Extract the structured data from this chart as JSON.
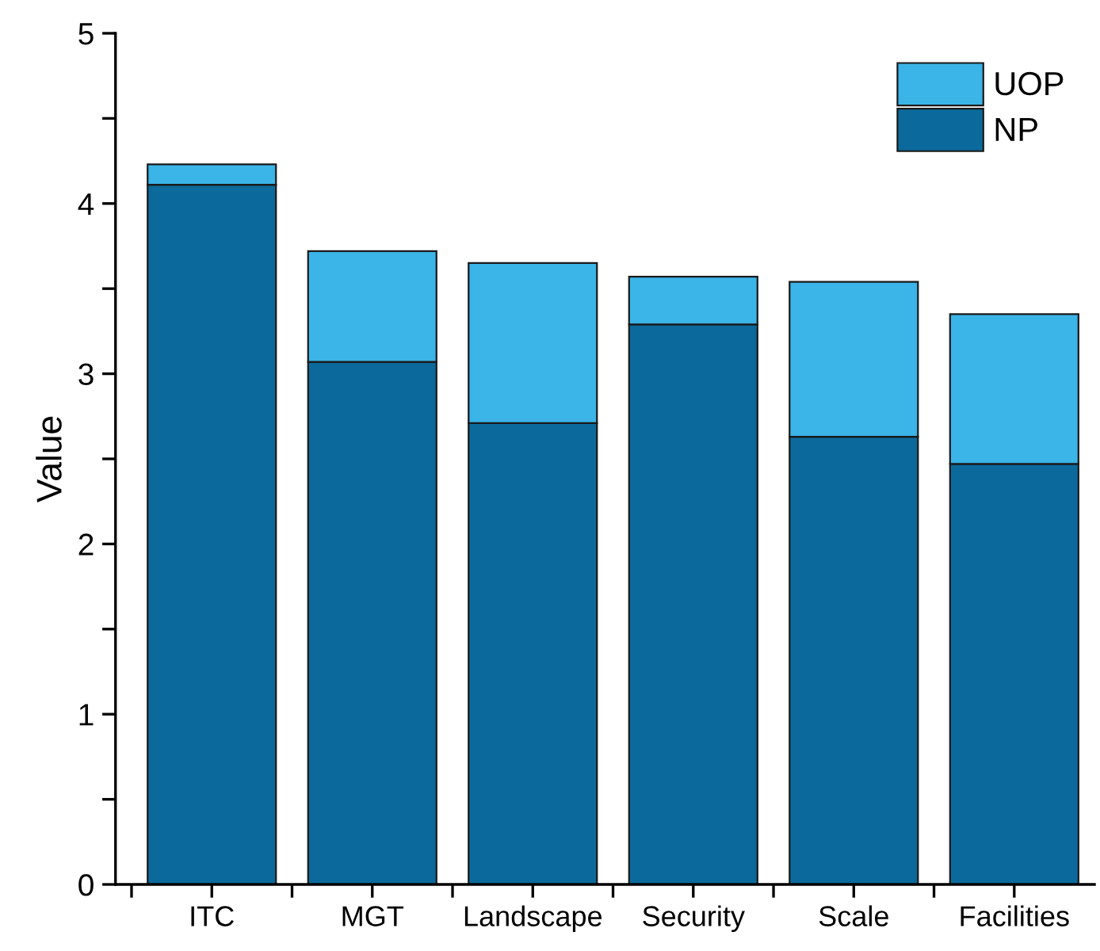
{
  "chart_data": {
    "type": "bar",
    "stacked": true,
    "ylabel": "Value",
    "categories": [
      "ITC",
      "MGT",
      "Landscape",
      "Security",
      "Scale",
      "Facilities"
    ],
    "series": [
      {
        "name": "NP",
        "color": "#0b6a9b",
        "values": [
          4.11,
          3.07,
          2.71,
          3.29,
          2.63,
          2.47
        ]
      },
      {
        "name": "UOP",
        "color": "#3bb4e7",
        "values": [
          0.12,
          0.65,
          0.94,
          0.28,
          0.91,
          0.88
        ]
      }
    ],
    "ylim": [
      0,
      5
    ],
    "yticks": [
      0,
      {
        "value": 0.5,
        "label": null
      },
      1,
      {
        "value": 1.5,
        "label": null
      },
      2,
      {
        "value": 2.5,
        "label": null
      },
      3,
      {
        "value": 3.5,
        "label": null
      },
      4,
      {
        "value": 4.5,
        "label": null
      },
      5
    ],
    "grid": false,
    "legend": "top right"
  }
}
